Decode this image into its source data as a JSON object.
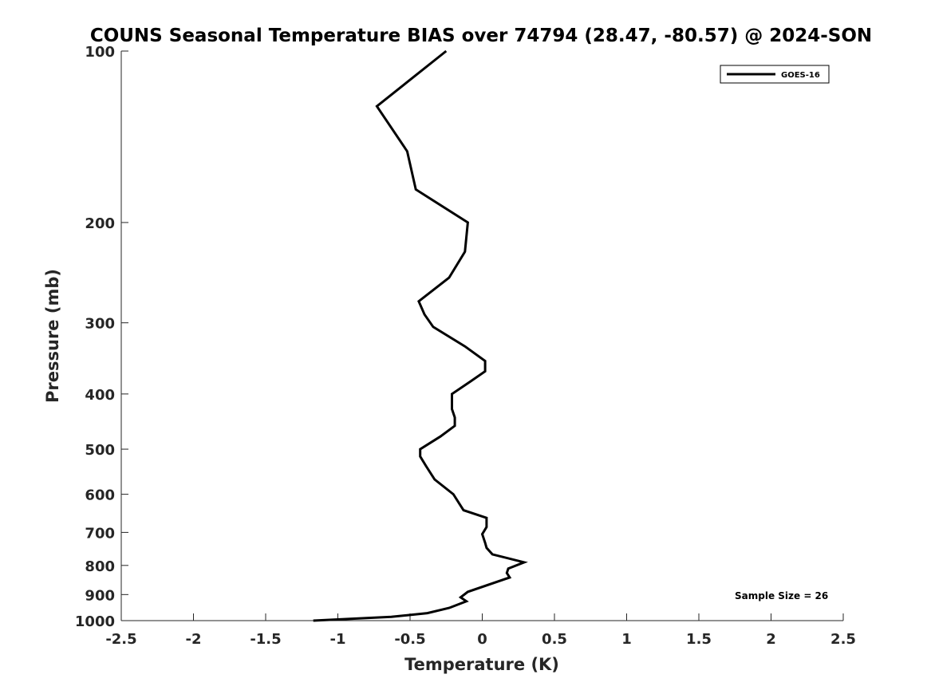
{
  "chart_data": {
    "type": "line",
    "title": "COUNS Seasonal Temperature BIAS over 74794 (28.47, -80.57) @ 2024-SON",
    "xlabel": "Temperature (K)",
    "ylabel": "Pressure (mb)",
    "xlim": [
      -2.5,
      2.5
    ],
    "ylim": [
      1000,
      100
    ],
    "yscale": "log",
    "x_ticks": [
      "-2.5",
      "-2",
      "-1.5",
      "-1",
      "-0.5",
      "0",
      "0.5",
      "1",
      "1.5",
      "2",
      "2.5"
    ],
    "x_tick_values": [
      -2.5,
      -2,
      -1.5,
      -1,
      -0.5,
      0,
      0.5,
      1,
      1.5,
      2,
      2.5
    ],
    "y_ticks": [
      "100",
      "200",
      "300",
      "400",
      "500",
      "600",
      "700",
      "800",
      "900",
      "1000"
    ],
    "y_tick_values": [
      100,
      200,
      300,
      400,
      500,
      600,
      700,
      800,
      900,
      1000
    ],
    "grid": false,
    "legend_position": "top-right",
    "annotation": "Sample Size = 26",
    "series": [
      {
        "name": "GOES-16",
        "color": "#000000",
        "points": [
          {
            "x": -0.25,
            "y": 100
          },
          {
            "x": -0.73,
            "y": 125
          },
          {
            "x": -0.52,
            "y": 150
          },
          {
            "x": -0.46,
            "y": 175
          },
          {
            "x": -0.1,
            "y": 200
          },
          {
            "x": -0.12,
            "y": 225
          },
          {
            "x": -0.23,
            "y": 250
          },
          {
            "x": -0.44,
            "y": 275
          },
          {
            "x": -0.4,
            "y": 290
          },
          {
            "x": -0.34,
            "y": 305
          },
          {
            "x": -0.12,
            "y": 330
          },
          {
            "x": 0.02,
            "y": 350
          },
          {
            "x": 0.02,
            "y": 365
          },
          {
            "x": -0.08,
            "y": 380
          },
          {
            "x": -0.21,
            "y": 400
          },
          {
            "x": -0.21,
            "y": 425
          },
          {
            "x": -0.19,
            "y": 440
          },
          {
            "x": -0.19,
            "y": 455
          },
          {
            "x": -0.29,
            "y": 475
          },
          {
            "x": -0.43,
            "y": 500
          },
          {
            "x": -0.43,
            "y": 515
          },
          {
            "x": -0.39,
            "y": 535
          },
          {
            "x": -0.33,
            "y": 565
          },
          {
            "x": -0.2,
            "y": 600
          },
          {
            "x": -0.13,
            "y": 640
          },
          {
            "x": 0.03,
            "y": 660
          },
          {
            "x": 0.03,
            "y": 685
          },
          {
            "x": 0.0,
            "y": 705
          },
          {
            "x": 0.02,
            "y": 730
          },
          {
            "x": 0.03,
            "y": 745
          },
          {
            "x": 0.07,
            "y": 765
          },
          {
            "x": 0.29,
            "y": 790
          },
          {
            "x": 0.18,
            "y": 810
          },
          {
            "x": 0.17,
            "y": 825
          },
          {
            "x": 0.19,
            "y": 840
          },
          {
            "x": -0.1,
            "y": 890
          },
          {
            "x": -0.15,
            "y": 910
          },
          {
            "x": -0.11,
            "y": 925
          },
          {
            "x": -0.23,
            "y": 950
          },
          {
            "x": -0.38,
            "y": 970
          },
          {
            "x": -0.63,
            "y": 985
          },
          {
            "x": -1.17,
            "y": 1000
          }
        ]
      }
    ]
  }
}
